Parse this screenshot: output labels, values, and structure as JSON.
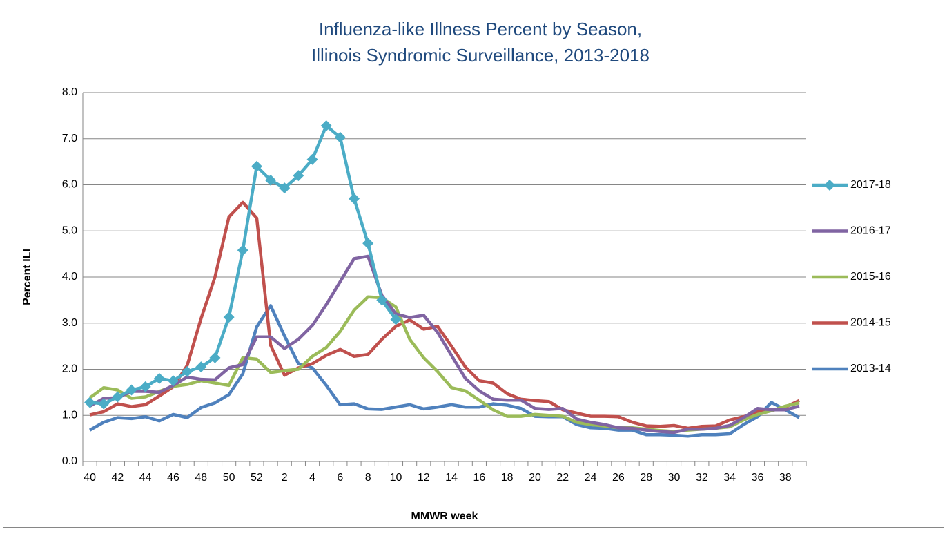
{
  "chart_data": {
    "type": "line",
    "title": [
      "Influenza-like Illness Percent by Season,",
      "Illinois Syndromic Surveillance, 2013-2018"
    ],
    "xlabel": "MMWR week",
    "ylabel": "Percent ILI",
    "categories": [
      "40",
      null,
      "42",
      null,
      "44",
      null,
      "46",
      null,
      "48",
      null,
      "50",
      null,
      "52",
      null,
      "2",
      null,
      "4",
      null,
      "6",
      null,
      "8",
      null,
      "10",
      null,
      "12",
      null,
      "14",
      null,
      "16",
      null,
      "18",
      null,
      "20",
      null,
      "22",
      null,
      "24",
      null,
      "26",
      null,
      "28",
      null,
      "30",
      null,
      "32",
      null,
      "34",
      null,
      "36",
      null,
      "38",
      null
    ],
    "ylim": [
      0,
      8
    ],
    "yticks": [
      {
        "value": 0,
        "label": "0.0"
      },
      {
        "value": 1,
        "label": "1.0"
      },
      {
        "value": 2,
        "label": "2.0"
      },
      {
        "value": 3,
        "label": "3.0"
      },
      {
        "value": 4,
        "label": "4.0"
      },
      {
        "value": 5,
        "label": "5.0"
      },
      {
        "value": 6,
        "label": "6.0"
      },
      {
        "value": 7,
        "label": "7.0"
      },
      {
        "value": 8,
        "label": "8.0"
      }
    ],
    "grid": true,
    "legend": "right",
    "series": [
      {
        "name": "2017-18",
        "color": "#4bacc6",
        "marker": "diamond",
        "values": [
          1.28,
          1.25,
          1.4,
          1.55,
          1.62,
          1.8,
          1.75,
          1.95,
          2.05,
          2.25,
          3.13,
          4.58,
          6.4,
          6.1,
          5.93,
          6.2,
          6.55,
          7.28,
          7.03,
          5.7,
          4.73,
          3.5,
          3.08,
          null,
          null,
          null,
          null,
          null,
          null,
          null,
          null,
          null,
          null,
          null,
          null,
          null,
          null,
          null,
          null,
          null,
          null,
          null,
          null,
          null,
          null,
          null,
          null,
          null,
          null,
          null,
          null,
          null
        ]
      },
      {
        "name": "2016-17",
        "color": "#8064a2",
        "values": [
          1.2,
          1.37,
          1.38,
          1.52,
          1.52,
          1.5,
          1.65,
          1.83,
          1.78,
          1.77,
          2.03,
          2.1,
          2.7,
          2.7,
          2.45,
          2.65,
          2.95,
          3.4,
          3.9,
          4.4,
          4.45,
          3.6,
          3.2,
          3.12,
          3.17,
          2.8,
          2.3,
          1.8,
          1.53,
          1.35,
          1.33,
          1.33,
          1.15,
          1.13,
          1.15,
          0.92,
          0.85,
          0.8,
          0.73,
          0.72,
          0.68,
          0.65,
          0.63,
          0.7,
          0.7,
          0.72,
          0.78,
          0.95,
          1.15,
          1.12,
          1.12,
          1.2
        ]
      },
      {
        "name": "2015-16",
        "color": "#9bbb59",
        "values": [
          1.38,
          1.6,
          1.55,
          1.37,
          1.4,
          1.52,
          1.63,
          1.67,
          1.75,
          1.7,
          1.65,
          2.25,
          2.22,
          1.93,
          1.97,
          2.0,
          2.28,
          2.47,
          2.82,
          3.28,
          3.57,
          3.55,
          3.35,
          2.65,
          2.25,
          1.95,
          1.6,
          1.53,
          1.33,
          1.12,
          0.98,
          0.98,
          1.02,
          1.0,
          0.98,
          0.85,
          0.8,
          0.77,
          0.73,
          0.73,
          0.7,
          0.67,
          0.65,
          0.68,
          0.7,
          0.72,
          0.75,
          0.9,
          1.02,
          1.1,
          1.2,
          1.27
        ]
      },
      {
        "name": "2014-15",
        "color": "#c0504d",
        "values": [
          1.01,
          1.08,
          1.25,
          1.19,
          1.23,
          1.42,
          1.62,
          2.08,
          3.1,
          4.0,
          5.3,
          5.62,
          5.28,
          2.52,
          1.87,
          2.03,
          2.12,
          2.3,
          2.43,
          2.28,
          2.32,
          2.65,
          2.93,
          3.07,
          2.87,
          2.93,
          2.5,
          2.05,
          1.75,
          1.7,
          1.47,
          1.35,
          1.32,
          1.3,
          1.12,
          1.05,
          0.98,
          0.98,
          0.97,
          0.85,
          0.77,
          0.76,
          0.78,
          0.72,
          0.76,
          0.77,
          0.9,
          0.97,
          1.08,
          1.1,
          1.18,
          1.32
        ]
      },
      {
        "name": "2013-14",
        "color": "#4f81bd",
        "values": [
          0.68,
          0.85,
          0.95,
          0.93,
          0.97,
          0.88,
          1.02,
          0.95,
          1.17,
          1.27,
          1.45,
          1.9,
          2.92,
          3.38,
          2.72,
          2.12,
          2.03,
          1.65,
          1.23,
          1.25,
          1.14,
          1.13,
          1.18,
          1.23,
          1.14,
          1.18,
          1.23,
          1.18,
          1.18,
          1.25,
          1.22,
          1.15,
          0.98,
          0.97,
          0.97,
          0.8,
          0.73,
          0.72,
          0.68,
          0.68,
          0.58,
          0.58,
          0.57,
          0.55,
          0.58,
          0.58,
          0.6,
          0.8,
          0.97,
          1.28,
          1.12,
          0.95
        ]
      }
    ]
  }
}
